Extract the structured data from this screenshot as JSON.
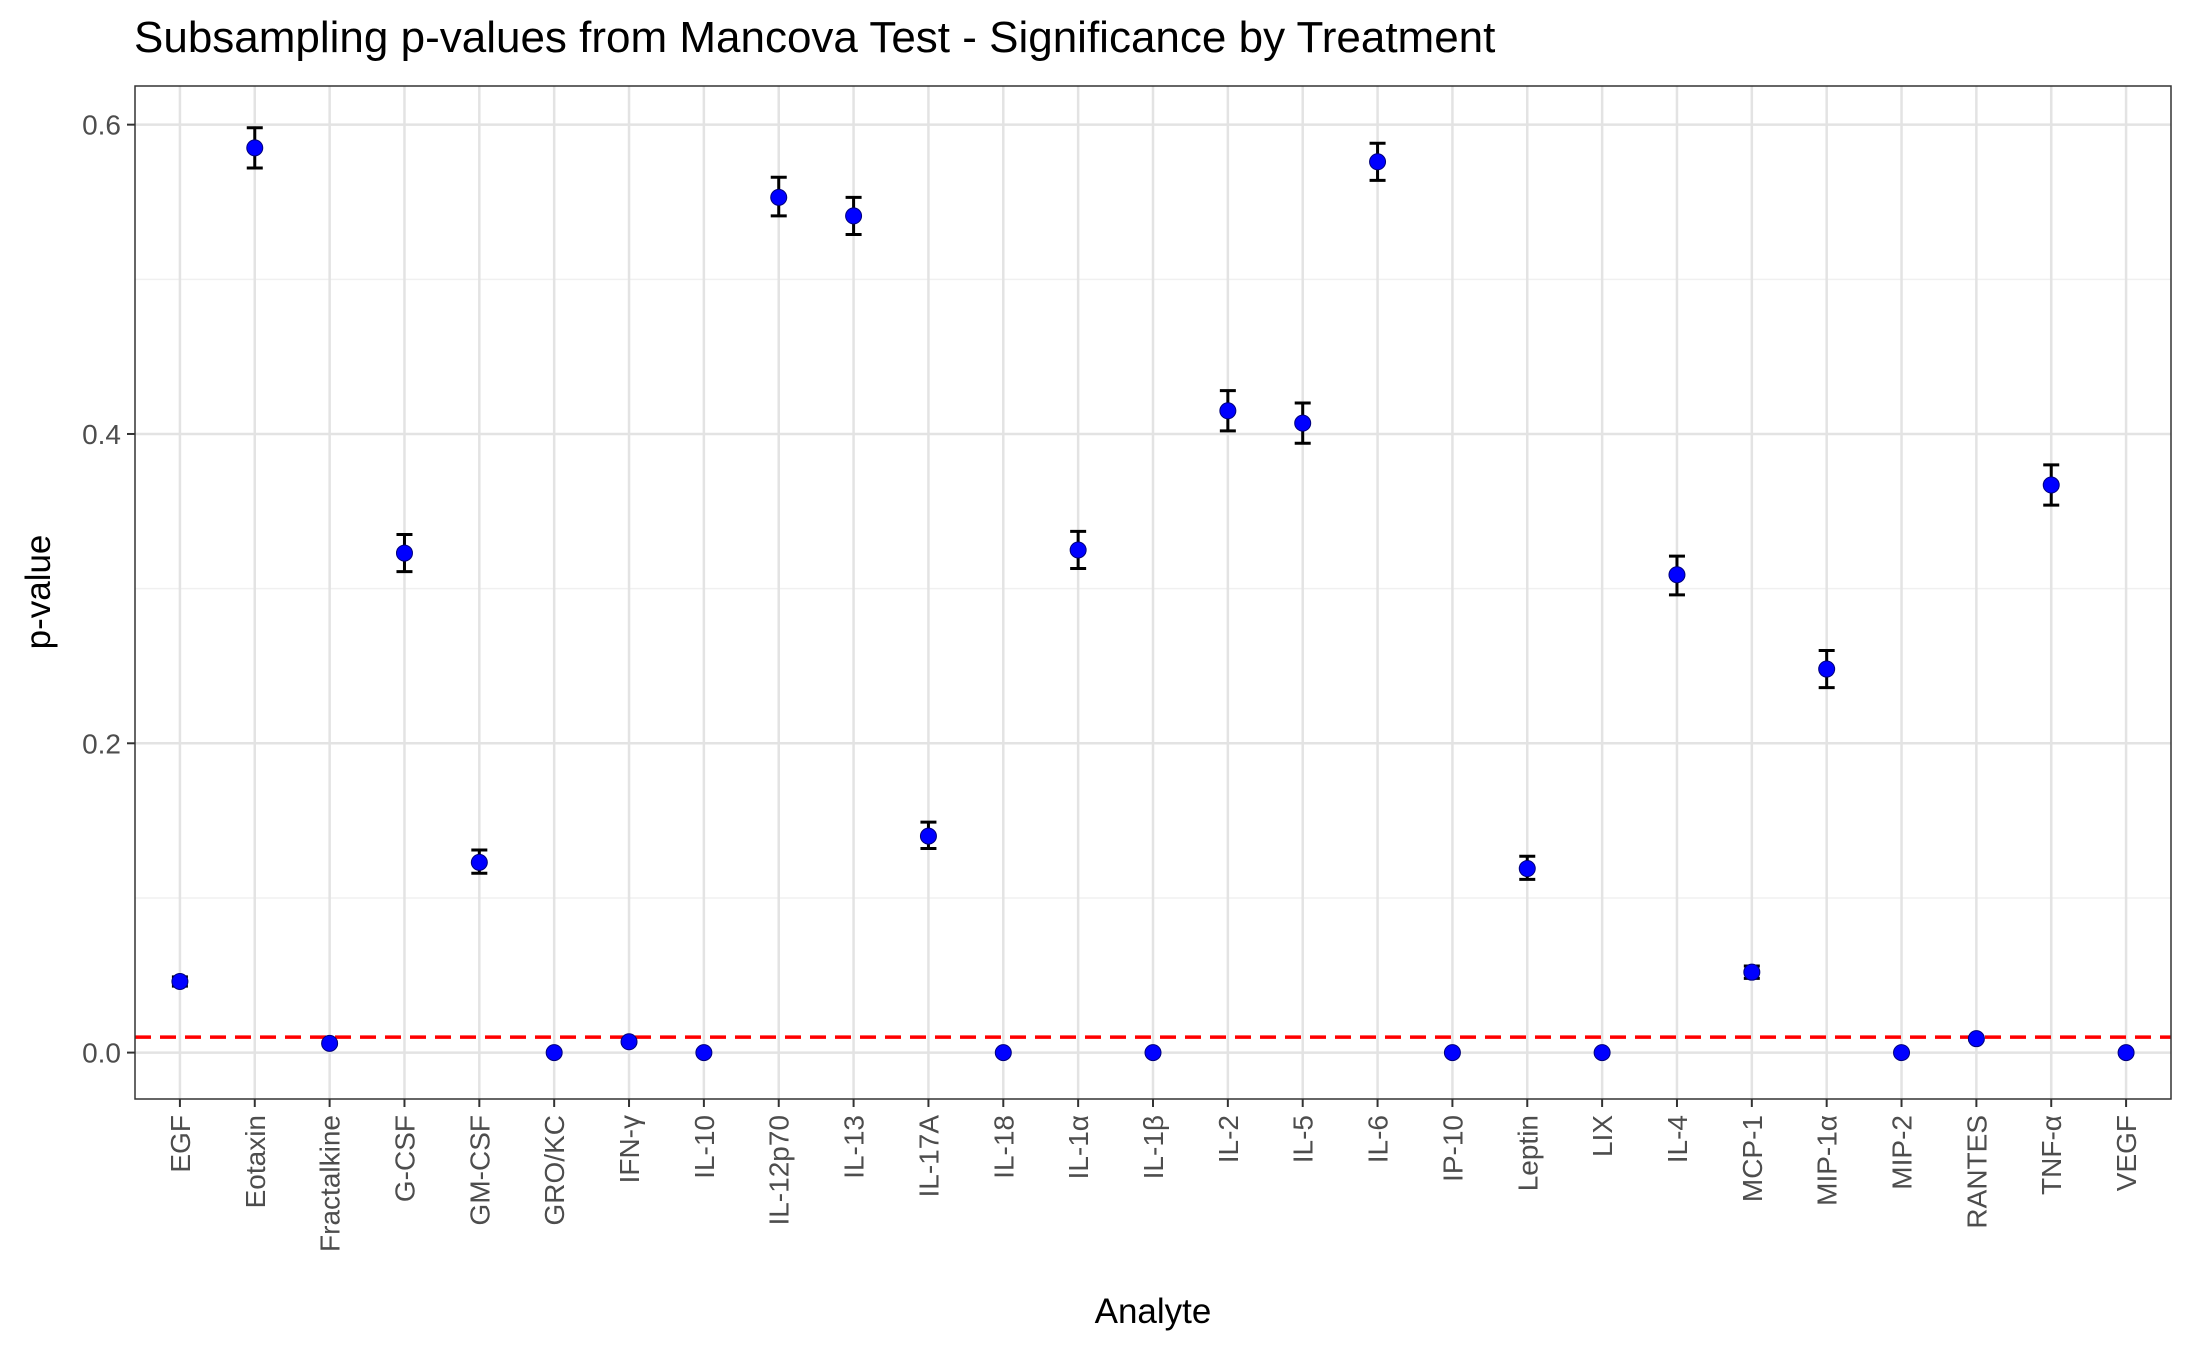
{
  "chart_data": {
    "type": "scatter",
    "title": "Subsampling p-values from Mancova Test - Significance by Treatment",
    "xlabel": "Analyte",
    "ylabel": "p-value",
    "ylim": [
      -0.03,
      0.625
    ],
    "yticks": [
      0.0,
      0.2,
      0.4,
      0.6
    ],
    "ytick_labels": [
      "0.0",
      "0.2",
      "0.4",
      "0.6"
    ],
    "grid": true,
    "point_color": "#0000ff",
    "errorbar_color": "#000000",
    "reference_line": {
      "value": 0.01,
      "color": "#ff0000",
      "style": "dashed"
    },
    "categories": [
      "EGF",
      "Eotaxin",
      "Fractalkine",
      "G-CSF",
      "GM-CSF",
      "GRO/KC",
      "IFN-γ",
      "IL-10",
      "IL-12p70",
      "IL-13",
      "IL-17A",
      "IL-18",
      "IL-1α",
      "IL-1β",
      "IL-2",
      "IL-5",
      "IL-6",
      "IP-10",
      "Leptin",
      "LIX",
      "IL-4",
      "MCP-1",
      "MIP-1α",
      "MIP-2",
      "RANTES",
      "TNF-α",
      "VEGF"
    ],
    "series": [
      {
        "values": [
          0.046,
          0.585,
          0.006,
          0.323,
          0.123,
          0.0,
          0.007,
          0.0,
          0.553,
          0.541,
          0.14,
          0.0,
          0.325,
          0.0,
          0.415,
          0.407,
          0.576,
          0.0,
          0.119,
          0.0,
          0.309,
          0.052,
          0.248,
          0.0,
          0.009,
          0.367,
          0.0
        ],
        "err_low": [
          0.043,
          0.572,
          0.005,
          0.311,
          0.116,
          0.0,
          0.006,
          0.0,
          0.541,
          0.529,
          0.132,
          0.0,
          0.313,
          0.0,
          0.402,
          0.394,
          0.564,
          0.0,
          0.112,
          0.0,
          0.296,
          0.048,
          0.236,
          0.0,
          0.008,
          0.354,
          0.0
        ],
        "err_high": [
          0.049,
          0.598,
          0.007,
          0.335,
          0.131,
          0.0,
          0.008,
          0.0,
          0.566,
          0.553,
          0.149,
          0.0,
          0.337,
          0.0,
          0.428,
          0.42,
          0.588,
          0.0,
          0.127,
          0.0,
          0.321,
          0.056,
          0.26,
          0.0,
          0.01,
          0.38,
          0.0
        ]
      }
    ]
  }
}
